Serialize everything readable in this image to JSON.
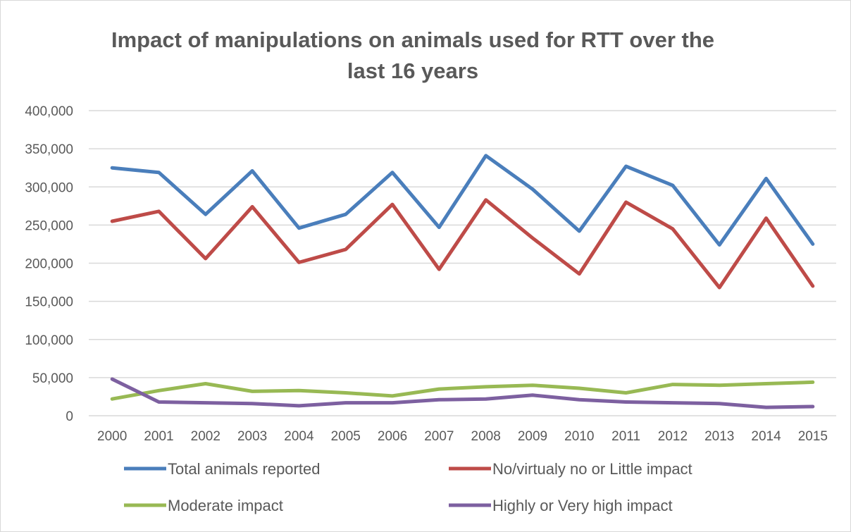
{
  "chart_data": {
    "type": "line",
    "title_line1": "Impact of manipulations on animals used for RTT over the",
    "title_line2": "last 16 years",
    "xlabel": "",
    "ylabel": "",
    "ylim": [
      0,
      400000
    ],
    "y_ticks": [
      0,
      50000,
      100000,
      150000,
      200000,
      250000,
      300000,
      350000,
      400000
    ],
    "y_tick_labels": [
      "0",
      "50,000",
      "100,000",
      "150,000",
      "200,000",
      "250,000",
      "300,000",
      "350,000",
      "400,000"
    ],
    "grid": true,
    "legend_position": "bottom",
    "x": [
      "2000",
      "2001",
      "2002",
      "2003",
      "2004",
      "2005",
      "2006",
      "2007",
      "2008",
      "2009",
      "2010",
      "2011",
      "2012",
      "2013",
      "2014",
      "2015"
    ],
    "series": [
      {
        "name": "Total animals reported",
        "color": "#4a7ebb",
        "values": [
          325000,
          319000,
          264000,
          321000,
          246000,
          264000,
          319000,
          247000,
          341000,
          297000,
          242000,
          327000,
          302000,
          224000,
          311000,
          225000
        ]
      },
      {
        "name": "No/virtualy no or Little impact",
        "color": "#be4b48",
        "values": [
          255000,
          268000,
          206000,
          274000,
          201000,
          218000,
          277000,
          192000,
          283000,
          233000,
          186000,
          280000,
          245000,
          168000,
          259000,
          170000
        ]
      },
      {
        "name": "Moderate impact",
        "color": "#98b954",
        "values": [
          22000,
          33000,
          42000,
          32000,
          33000,
          30000,
          26000,
          35000,
          38000,
          40000,
          36000,
          30000,
          41000,
          40000,
          42000,
          44000
        ]
      },
      {
        "name": "Highly or Very high impact",
        "color": "#7d60a0",
        "values": [
          48000,
          18000,
          17000,
          16000,
          13000,
          17000,
          17000,
          21000,
          22000,
          27000,
          21000,
          18000,
          17000,
          16000,
          11000,
          12000
        ]
      }
    ]
  }
}
